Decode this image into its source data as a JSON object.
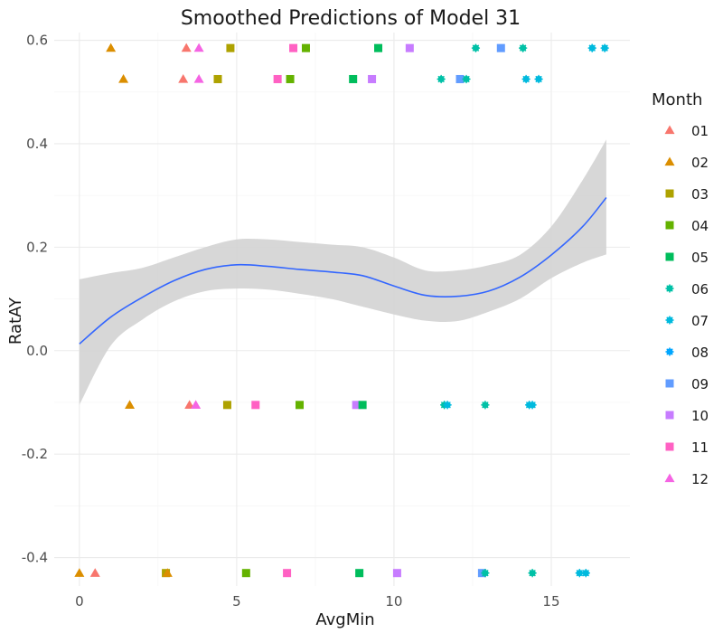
{
  "chart_data": {
    "type": "scatter",
    "title": "Smoothed Predictions of Model 31",
    "xlabel": "AvgMin",
    "ylabel": "RatAY",
    "xlim": [
      -0.8,
      17.5
    ],
    "ylim": [
      -0.455,
      0.615
    ],
    "x_ticks": [
      0,
      5,
      10,
      15
    ],
    "x_tick_labels": [
      "0",
      "5",
      "10",
      "15"
    ],
    "y_ticks": [
      -0.4,
      -0.2,
      0.0,
      0.2,
      0.4,
      0.6
    ],
    "y_tick_labels": [
      "-0.4",
      "-0.2",
      "0.0",
      "0.2",
      "0.4",
      "0.6"
    ],
    "grid": true,
    "legend": {
      "title": "Month",
      "position": "right",
      "entries": [
        {
          "label": "01",
          "color": "#F8766D",
          "shape": "triangle"
        },
        {
          "label": "02",
          "color": "#DB8E00",
          "shape": "triangle"
        },
        {
          "label": "03",
          "color": "#AEA200",
          "shape": "square"
        },
        {
          "label": "04",
          "color": "#64B200",
          "shape": "square"
        },
        {
          "label": "05",
          "color": "#00BD5C",
          "shape": "square"
        },
        {
          "label": "06",
          "color": "#00C1A7",
          "shape": "asterisk"
        },
        {
          "label": "07",
          "color": "#00BADE",
          "shape": "asterisk"
        },
        {
          "label": "08",
          "color": "#00A6FF",
          "shape": "asterisk"
        },
        {
          "label": "09",
          "color": "#619CFF",
          "shape": "square"
        },
        {
          "label": "10",
          "color": "#C77CFF",
          "shape": "square"
        },
        {
          "label": "11",
          "color": "#FF61C3",
          "shape": "square"
        },
        {
          "label": "12",
          "color": "#F564E3",
          "shape": "triangle"
        }
      ]
    },
    "points": [
      {
        "x": 1.0,
        "y": 0.585,
        "month": "02"
      },
      {
        "x": 3.4,
        "y": 0.585,
        "month": "01"
      },
      {
        "x": 3.8,
        "y": 0.585,
        "month": "12"
      },
      {
        "x": 4.8,
        "y": 0.585,
        "month": "03"
      },
      {
        "x": 6.8,
        "y": 0.585,
        "month": "11"
      },
      {
        "x": 7.2,
        "y": 0.585,
        "month": "04"
      },
      {
        "x": 9.5,
        "y": 0.585,
        "month": "05"
      },
      {
        "x": 10.5,
        "y": 0.585,
        "month": "10"
      },
      {
        "x": 12.6,
        "y": 0.585,
        "month": "06"
      },
      {
        "x": 13.4,
        "y": 0.585,
        "month": "09"
      },
      {
        "x": 14.1,
        "y": 0.585,
        "month": "06"
      },
      {
        "x": 16.3,
        "y": 0.585,
        "month": "07"
      },
      {
        "x": 16.7,
        "y": 0.585,
        "month": "07"
      },
      {
        "x": 1.4,
        "y": 0.525,
        "month": "02"
      },
      {
        "x": 3.3,
        "y": 0.525,
        "month": "01"
      },
      {
        "x": 3.8,
        "y": 0.525,
        "month": "12"
      },
      {
        "x": 4.4,
        "y": 0.525,
        "month": "03"
      },
      {
        "x": 6.3,
        "y": 0.525,
        "month": "11"
      },
      {
        "x": 6.7,
        "y": 0.525,
        "month": "04"
      },
      {
        "x": 8.7,
        "y": 0.525,
        "month": "05"
      },
      {
        "x": 9.3,
        "y": 0.525,
        "month": "10"
      },
      {
        "x": 11.5,
        "y": 0.525,
        "month": "06"
      },
      {
        "x": 12.1,
        "y": 0.525,
        "month": "09"
      },
      {
        "x": 12.3,
        "y": 0.525,
        "month": "06"
      },
      {
        "x": 14.2,
        "y": 0.525,
        "month": "07"
      },
      {
        "x": 14.6,
        "y": 0.525,
        "month": "07"
      },
      {
        "x": 1.6,
        "y": -0.105,
        "month": "02"
      },
      {
        "x": 3.5,
        "y": -0.105,
        "month": "01"
      },
      {
        "x": 3.7,
        "y": -0.105,
        "month": "12"
      },
      {
        "x": 4.7,
        "y": -0.105,
        "month": "03"
      },
      {
        "x": 5.6,
        "y": -0.105,
        "month": "11"
      },
      {
        "x": 7.0,
        "y": -0.105,
        "month": "04"
      },
      {
        "x": 8.8,
        "y": -0.105,
        "month": "10"
      },
      {
        "x": 9.0,
        "y": -0.105,
        "month": "05"
      },
      {
        "x": 11.6,
        "y": -0.105,
        "month": "06"
      },
      {
        "x": 11.7,
        "y": -0.105,
        "month": "07"
      },
      {
        "x": 12.9,
        "y": -0.105,
        "month": "06"
      },
      {
        "x": 14.3,
        "y": -0.105,
        "month": "07"
      },
      {
        "x": 14.4,
        "y": -0.105,
        "month": "07"
      },
      {
        "x": 0.0,
        "y": -0.43,
        "month": "02"
      },
      {
        "x": 0.5,
        "y": -0.43,
        "month": "01"
      },
      {
        "x": 2.75,
        "y": -0.43,
        "month": "03"
      },
      {
        "x": 2.8,
        "y": -0.43,
        "month": "02"
      },
      {
        "x": 5.3,
        "y": -0.43,
        "month": "04"
      },
      {
        "x": 6.6,
        "y": -0.43,
        "month": "11"
      },
      {
        "x": 8.9,
        "y": -0.43,
        "month": "05"
      },
      {
        "x": 10.1,
        "y": -0.43,
        "month": "10"
      },
      {
        "x": 12.8,
        "y": -0.43,
        "month": "09"
      },
      {
        "x": 12.9,
        "y": -0.43,
        "month": "06"
      },
      {
        "x": 14.4,
        "y": -0.43,
        "month": "06"
      },
      {
        "x": 15.9,
        "y": -0.43,
        "month": "07"
      },
      {
        "x": 16.1,
        "y": -0.43,
        "month": "07"
      }
    ],
    "smooth": {
      "color": "#3366FF",
      "band_color": "#d3d3d3",
      "x": [
        0.0,
        1.0,
        2.0,
        3.0,
        4.0,
        5.0,
        6.0,
        7.0,
        8.0,
        9.0,
        10.0,
        11.0,
        12.0,
        13.0,
        14.0,
        15.0,
        16.0,
        16.75
      ],
      "y": [
        0.013,
        0.065,
        0.103,
        0.135,
        0.157,
        0.166,
        0.163,
        0.157,
        0.152,
        0.145,
        0.125,
        0.107,
        0.105,
        0.115,
        0.142,
        0.185,
        0.24,
        0.296
      ],
      "lower": [
        -0.105,
        0.01,
        0.06,
        0.095,
        0.115,
        0.12,
        0.118,
        0.11,
        0.1,
        0.085,
        0.07,
        0.058,
        0.057,
        0.075,
        0.1,
        0.14,
        0.17,
        0.186
      ],
      "upper": [
        0.138,
        0.15,
        0.16,
        0.18,
        0.2,
        0.215,
        0.215,
        0.21,
        0.205,
        0.2,
        0.18,
        0.155,
        0.155,
        0.165,
        0.185,
        0.24,
        0.33,
        0.408
      ]
    }
  }
}
